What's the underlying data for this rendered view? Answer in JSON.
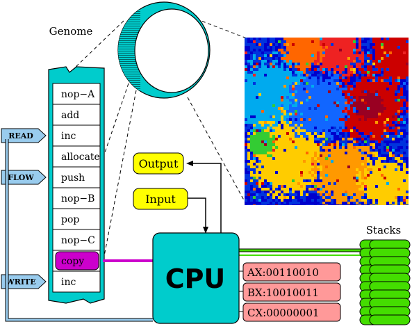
{
  "genome": {
    "label": "Genome",
    "instructions": [
      "nop−A",
      "add",
      "inc",
      "allocate",
      "push",
      "nop−B",
      "pop",
      "nop−C",
      "copy",
      "inc"
    ],
    "current_index": 8
  },
  "pointers": [
    {
      "label": "READ",
      "row": 2
    },
    {
      "label": "FLOW",
      "row": 4
    },
    {
      "label": "WRITE",
      "row": 9
    }
  ],
  "io": {
    "output_label": "Output",
    "input_label": "Input"
  },
  "cpu": {
    "label": "CPU",
    "registers": [
      "AX:00110010",
      "BX:10010011",
      "CX:00000001"
    ]
  },
  "stacks": {
    "label": "Stacks",
    "count": 2,
    "depth": 10
  },
  "colors": {
    "cpu": "#00cccc",
    "genome_fill": "#ffffff",
    "pointer": "#99ccee",
    "output": "#ffff00",
    "register": "#ff9999",
    "copy_highlight": "#cc00cc",
    "stack": "#44dd00",
    "ring": "#00cccc",
    "population_palette": [
      "#0000cc",
      "#0033dd",
      "#1166ff",
      "#00aaee",
      "#ffcc00",
      "#ff9900",
      "#cc0000",
      "#ee2222",
      "#33cc33",
      "#990022",
      "#ff6600"
    ]
  }
}
